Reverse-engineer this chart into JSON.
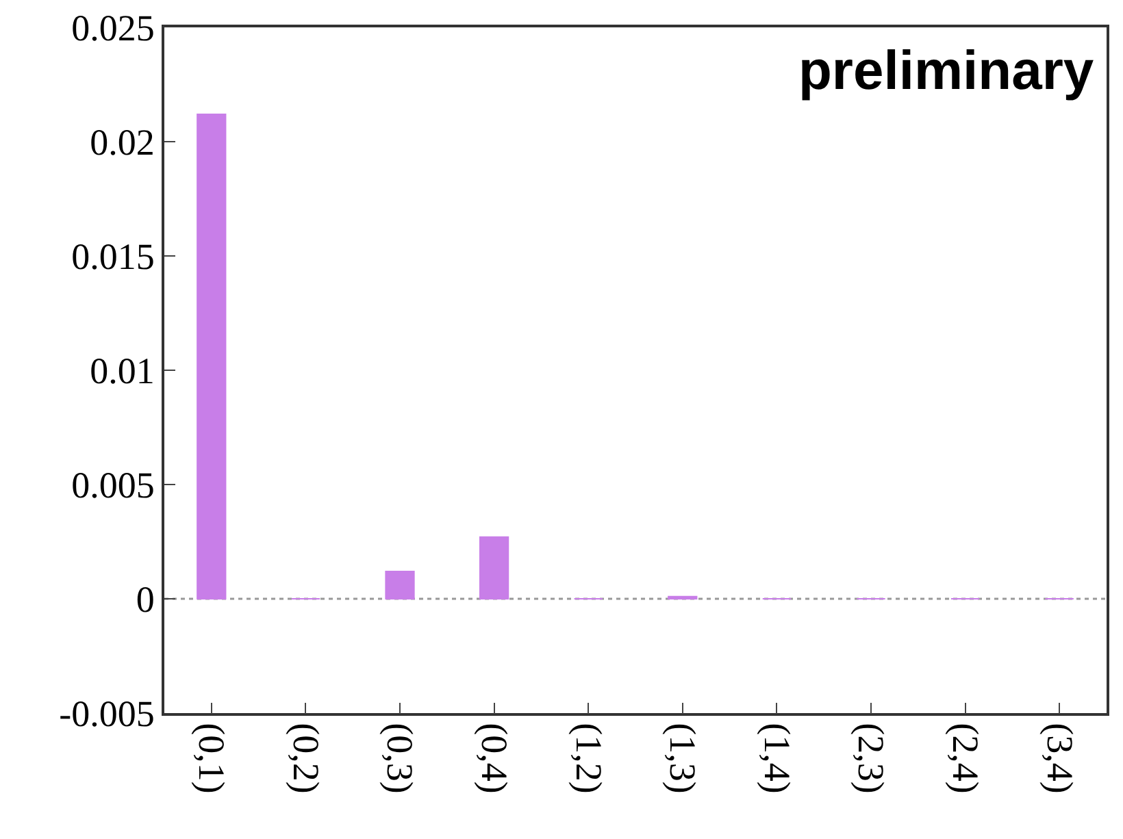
{
  "chart_data": {
    "type": "bar",
    "categories": [
      "(0,1)",
      "(0,2)",
      "(0,3)",
      "(0,4)",
      "(1,2)",
      "(1,3)",
      "(1,4)",
      "(2,3)",
      "(2,4)",
      "(3,4)"
    ],
    "values": [
      0.0212,
      0,
      0.0012,
      0.0027,
      0,
      0.0001,
      0,
      0,
      0,
      0
    ],
    "color": "#c87ee8",
    "ylim": [
      -0.005,
      0.025
    ],
    "yticks": [
      -0.005,
      0,
      0.005,
      0.01,
      0.015,
      0.02,
      0.025
    ],
    "grid": false,
    "ref_lines": [
      {
        "axis": "y",
        "value": 0,
        "color": "#999999",
        "line_style": "dotted"
      }
    ],
    "annotations": [
      "preliminary"
    ]
  }
}
